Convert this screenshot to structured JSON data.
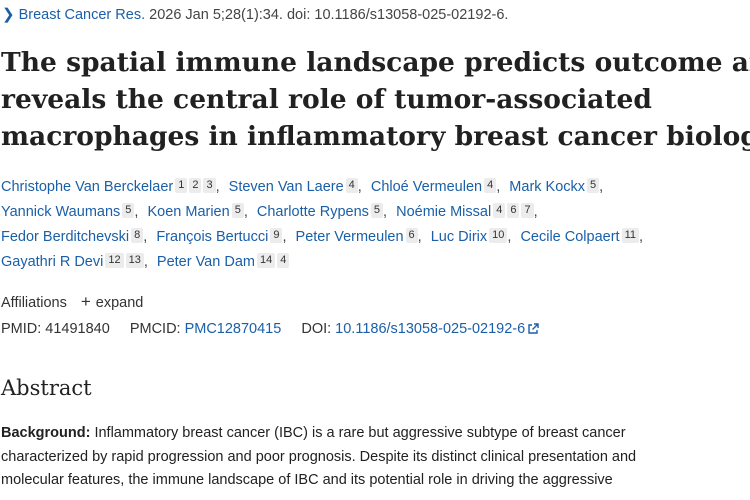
{
  "citation": {
    "journal": "Breast Cancer Res.",
    "details": "2026 Jan 5;28(1):34. doi: 10.1186/s13058-025-02192-6."
  },
  "title_lines": [
    "The spatial immune landscape predicts outcome and",
    "reveals the central role of tumor-associated",
    "macrophages in inflammatory breast cancer biology"
  ],
  "authors": [
    {
      "name": "Christophe Van Berckelaer",
      "affs": [
        "1",
        "2",
        "3"
      ]
    },
    {
      "name": "Steven Van Laere",
      "affs": [
        "4"
      ]
    },
    {
      "name": "Chloé Vermeulen",
      "affs": [
        "4"
      ]
    },
    {
      "name": "Mark Kockx",
      "affs": [
        "5"
      ]
    },
    {
      "name": "Yannick Waumans",
      "affs": [
        "5"
      ]
    },
    {
      "name": "Koen Marien",
      "affs": [
        "5"
      ]
    },
    {
      "name": "Charlotte Rypens",
      "affs": [
        "5"
      ]
    },
    {
      "name": "Noémie Missal",
      "affs": [
        "4",
        "6",
        "7"
      ]
    },
    {
      "name": "Fedor Berditchevski",
      "affs": [
        "8"
      ]
    },
    {
      "name": "François Bertucci",
      "affs": [
        "9"
      ]
    },
    {
      "name": "Peter Vermeulen",
      "affs": [
        "6"
      ]
    },
    {
      "name": "Luc Dirix",
      "affs": [
        "10"
      ]
    },
    {
      "name": "Cecile Colpaert",
      "affs": [
        "11"
      ]
    },
    {
      "name": "Gayathri R Devi",
      "affs": [
        "12",
        "13"
      ]
    },
    {
      "name": "Peter Van Dam",
      "affs": [
        "14",
        "4"
      ]
    }
  ],
  "affiliations": {
    "label": "Affiliations",
    "expand_label": "expand"
  },
  "identifiers": {
    "pmid_label": "PMID:",
    "pmid": "41491840",
    "pmcid_label": "PMCID:",
    "pmcid": "PMC12870415",
    "doi_label": "DOI:",
    "doi": "10.1186/s13058-025-02192-6"
  },
  "abstract": {
    "heading": "Abstract",
    "background_label": "Background:",
    "lines": [
      " Inflammatory breast cancer (IBC) is a rare but aggressive subtype of breast cancer",
      "characterized by rapid progression and poor prognosis. Despite its distinct clinical presentation and",
      "molecular features, the immune landscape of IBC and its potential role in driving the aggressive"
    ]
  },
  "colors": {
    "link": "#1a5fa8",
    "text": "#212121",
    "badge": "#ececec"
  },
  "icons": [
    "chevron-right-icon",
    "plus-icon",
    "external-link-icon"
  ]
}
